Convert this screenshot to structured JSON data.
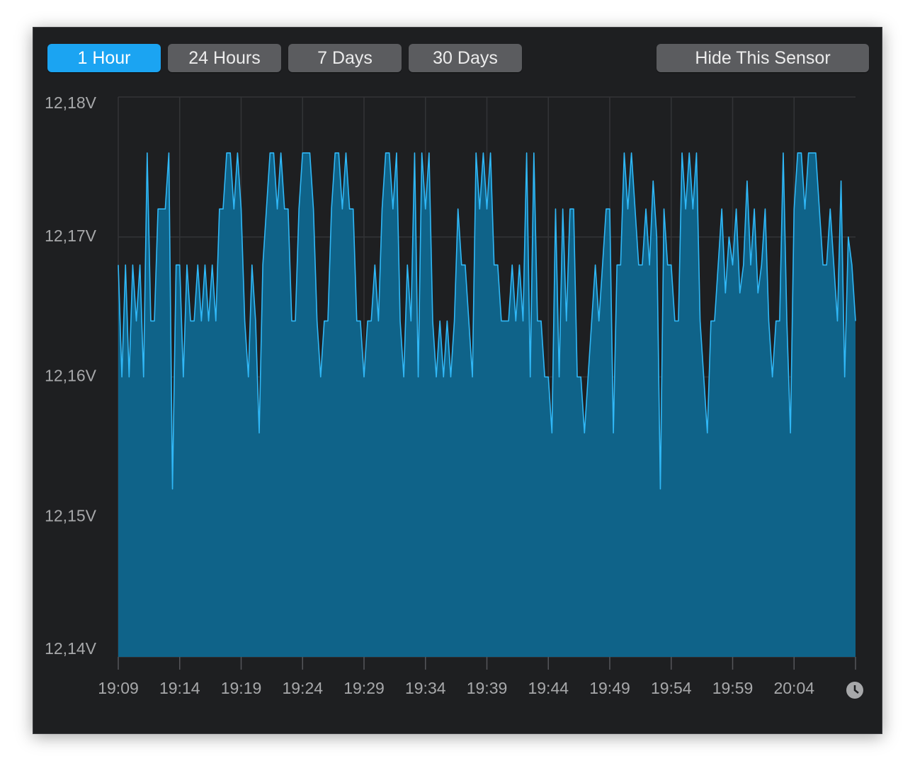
{
  "toolbar": {
    "ranges": [
      "1 Hour",
      "24 Hours",
      "7 Days",
      "30 Days"
    ],
    "selected": 0,
    "hide_button": "Hide This Sensor"
  },
  "chart_data": {
    "type": "area",
    "values": [
      12.168,
      12.16,
      12.168,
      12.16,
      12.168,
      12.164,
      12.168,
      12.16,
      12.176,
      12.164,
      12.164,
      12.172,
      12.172,
      12.172,
      12.176,
      12.152,
      12.168,
      12.168,
      12.16,
      12.168,
      12.164,
      12.164,
      12.168,
      12.164,
      12.168,
      12.164,
      12.168,
      12.164,
      12.172,
      12.172,
      12.176,
      12.176,
      12.172,
      12.176,
      12.172,
      12.164,
      12.16,
      12.168,
      12.164,
      12.156,
      12.168,
      12.172,
      12.176,
      12.176,
      12.172,
      12.176,
      12.172,
      12.172,
      12.164,
      12.164,
      12.172,
      12.176,
      12.176,
      12.176,
      12.172,
      12.164,
      12.16,
      12.164,
      12.164,
      12.172,
      12.176,
      12.176,
      12.172,
      12.176,
      12.172,
      12.172,
      12.164,
      12.164,
      12.16,
      12.164,
      12.164,
      12.168,
      12.164,
      12.172,
      12.176,
      12.176,
      12.172,
      12.176,
      12.164,
      12.16,
      12.168,
      12.164,
      12.176,
      12.16,
      12.176,
      12.172,
      12.176,
      12.164,
      12.16,
      12.164,
      12.16,
      12.164,
      12.16,
      12.164,
      12.172,
      12.168,
      12.168,
      12.164,
      12.16,
      12.176,
      12.172,
      12.176,
      12.172,
      12.176,
      12.168,
      12.168,
      12.164,
      12.164,
      12.164,
      12.168,
      12.164,
      12.168,
      12.164,
      12.176,
      12.16,
      12.176,
      12.164,
      12.164,
      12.16,
      12.16,
      12.156,
      12.172,
      12.16,
      12.172,
      12.164,
      12.172,
      12.172,
      12.16,
      12.16,
      12.156,
      12.16,
      12.164,
      12.168,
      12.164,
      12.168,
      12.172,
      12.172,
      12.156,
      12.168,
      12.168,
      12.176,
      12.172,
      12.176,
      12.172,
      12.168,
      12.168,
      12.172,
      12.168,
      12.174,
      12.17,
      12.152,
      12.172,
      12.168,
      12.168,
      12.164,
      12.164,
      12.176,
      12.172,
      12.176,
      12.172,
      12.176,
      12.164,
      12.16,
      12.156,
      12.164,
      12.164,
      12.168,
      12.172,
      12.166,
      12.17,
      12.168,
      12.172,
      12.166,
      12.168,
      12.174,
      12.168,
      12.172,
      12.166,
      12.168,
      12.172,
      12.164,
      12.16,
      12.164,
      12.164,
      12.176,
      12.164,
      12.156,
      12.172,
      12.176,
      12.176,
      12.172,
      12.176,
      12.176,
      12.176,
      12.172,
      12.168,
      12.168,
      12.172,
      12.168,
      12.164,
      12.174,
      12.16,
      12.17,
      12.168,
      12.164
    ],
    "x_labels": [
      "19:09",
      "19:14",
      "19:19",
      "19:24",
      "19:29",
      "19:34",
      "19:39",
      "19:44",
      "19:49",
      "19:54",
      "19:59",
      "20:04"
    ],
    "ylim": [
      12.14,
      12.18
    ],
    "yticks": [
      {
        "value": 12.14,
        "label": "12,14V"
      },
      {
        "value": 12.15,
        "label": "12,15V"
      },
      {
        "value": 12.16,
        "label": "12,16V"
      },
      {
        "value": 12.17,
        "label": "12,17V"
      },
      {
        "value": 12.18,
        "label": "12,18V"
      }
    ],
    "grid": true,
    "color": "#30b8f7",
    "fill_color": "#0f6389"
  }
}
